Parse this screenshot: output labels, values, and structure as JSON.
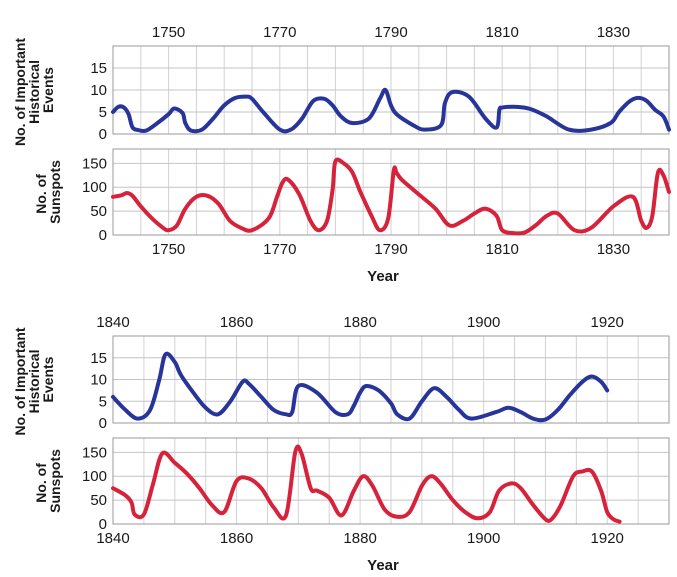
{
  "chart_data": [
    {
      "type": "line",
      "ylabel": [
        "No. of Important",
        "Historical",
        "Events"
      ],
      "xlim": [
        1740,
        1840
      ],
      "ylim": [
        0,
        20
      ],
      "yticks": [
        0,
        5,
        10,
        15
      ],
      "xticks": [
        "1750",
        "1770",
        "1790",
        "1810",
        "1830"
      ],
      "xtick_position": "top",
      "grid": true,
      "series": [
        {
          "color": "#27359a",
          "x": [
            1740.0,
            1741.0,
            1742.0,
            1742.8,
            1743.5,
            1744.5,
            1746.0,
            1748.0,
            1750.0,
            1751.0,
            1752.5,
            1753.0,
            1754.0,
            1756.0,
            1758.0,
            1760.0,
            1762.0,
            1764.0,
            1765.0,
            1767.0,
            1770.0,
            1772.0,
            1774.0,
            1776.0,
            1778.0,
            1779.5,
            1781.0,
            1783.0,
            1786.0,
            1788.0,
            1789.0,
            1790.0,
            1791.0,
            1794.0,
            1796.0,
            1799.0,
            1799.7,
            1801.0,
            1804.0,
            1807.0,
            1809.0,
            1809.5,
            1810.0,
            1812.0,
            1814.0,
            1815.5,
            1818.0,
            1822.0,
            1826.0,
            1829.5,
            1831.0,
            1833.0,
            1834.5,
            1836.0,
            1837.5,
            1839.0,
            1840.0
          ],
          "y": [
            5.0,
            6.2,
            6.0,
            4.5,
            1.5,
            0.9,
            0.8,
            2.5,
            4.5,
            5.8,
            4.8,
            2.5,
            0.8,
            1.0,
            3.5,
            6.5,
            8.2,
            8.5,
            8.0,
            5.0,
            1.0,
            1.0,
            3.5,
            7.5,
            8.0,
            6.5,
            4.0,
            2.5,
            3.5,
            8.0,
            10.0,
            6.5,
            4.5,
            2.0,
            1.0,
            2.0,
            7.0,
            9.5,
            8.5,
            3.5,
            1.5,
            5.5,
            6.0,
            6.2,
            6.0,
            5.5,
            4.0,
            1.0,
            1.0,
            2.5,
            5.0,
            7.5,
            8.2,
            7.5,
            5.5,
            4.0,
            1.0
          ]
        }
      ]
    },
    {
      "type": "line",
      "ylabel": [
        "No. of",
        "Sunspots"
      ],
      "xlabel": "Year",
      "xlim": [
        1740,
        1840
      ],
      "ylim": [
        0,
        180
      ],
      "yticks": [
        0,
        50,
        100,
        150
      ],
      "xticks": [
        "1750",
        "1770",
        "1790",
        "1810",
        "1830"
      ],
      "xtick_position": "bottom",
      "grid": true,
      "series": [
        {
          "color": "#d6223a",
          "x": [
            1740.0,
            1741.5,
            1742.5,
            1743.5,
            1745.0,
            1747.0,
            1749.0,
            1750.0,
            1751.5,
            1753.0,
            1755.0,
            1757.0,
            1759.0,
            1761.0,
            1763.0,
            1765.0,
            1768.0,
            1769.5,
            1770.5,
            1771.5,
            1773.5,
            1775.5,
            1777.0,
            1778.5,
            1779.5,
            1780.0,
            1781.5,
            1783.0,
            1784.5,
            1786.5,
            1788.0,
            1789.5,
            1790.5,
            1791.0,
            1792.0,
            1795.0,
            1798.0,
            1800.5,
            1803.0,
            1805.0,
            1807.0,
            1809.0,
            1810.0,
            1812.0,
            1814.0,
            1816.0,
            1818.0,
            1820.0,
            1823.0,
            1826.0,
            1830.0,
            1833.5,
            1835.0,
            1836.0,
            1837.0,
            1838.0,
            1839.0,
            1840.0
          ],
          "y": [
            80,
            83,
            88,
            82,
            60,
            35,
            15,
            10,
            20,
            55,
            80,
            82,
            65,
            30,
            15,
            10,
            35,
            80,
            110,
            116,
            85,
            30,
            10,
            30,
            95,
            154,
            150,
            132,
            90,
            40,
            10,
            35,
            135,
            130,
            115,
            85,
            55,
            20,
            30,
            45,
            55,
            40,
            10,
            4,
            5,
            20,
            40,
            45,
            10,
            15,
            60,
            80,
            30,
            15,
            40,
            130,
            125,
            90
          ]
        }
      ]
    },
    {
      "type": "line",
      "ylabel": [
        "No. of Important",
        "Historical",
        "Events"
      ],
      "xlim": [
        1840,
        1930
      ],
      "ylim": [
        0,
        20
      ],
      "yticks": [
        0,
        5,
        10,
        15
      ],
      "xticks": [
        "1840",
        "1860",
        "1880",
        "1900",
        "1920"
      ],
      "xtick_position": "top",
      "grid": true,
      "series": [
        {
          "color": "#27359a",
          "x": [
            1840.0,
            1842.0,
            1844.0,
            1846.0,
            1847.5,
            1848.5,
            1850.0,
            1851.0,
            1853.0,
            1855.0,
            1857.0,
            1859.0,
            1861.0,
            1862.0,
            1864.0,
            1866.0,
            1868.0,
            1869.0,
            1870.0,
            1873.0,
            1876.0,
            1878.0,
            1879.0,
            1880.0,
            1881.0,
            1883.0,
            1885.0,
            1886.0,
            1888.0,
            1890.0,
            1892.0,
            1894.0,
            1896.0,
            1898.0,
            1902.0,
            1904.0,
            1906.0,
            1908.0,
            1910.0,
            1912.0,
            1914.0,
            1916.0,
            1917.5,
            1919.0,
            1920.0
          ],
          "y": [
            6.0,
            3.0,
            1.0,
            3.0,
            10.0,
            15.8,
            14.0,
            11.0,
            7.0,
            3.5,
            2.0,
            5.0,
            9.5,
            9.0,
            6.0,
            3.0,
            2.0,
            2.5,
            8.5,
            7.0,
            2.5,
            2.0,
            4.0,
            7.0,
            8.5,
            7.5,
            4.5,
            2.0,
            1.0,
            5.0,
            8.0,
            6.0,
            3.0,
            1.0,
            2.5,
            3.5,
            2.5,
            1.0,
            0.8,
            3.0,
            6.5,
            9.5,
            10.7,
            9.5,
            7.5
          ]
        }
      ]
    },
    {
      "type": "line",
      "ylabel": [
        "No. of",
        "Sunspots"
      ],
      "xlabel": "Year",
      "xlim": [
        1840,
        1930
      ],
      "ylim": [
        0,
        180
      ],
      "yticks": [
        0,
        50,
        100,
        150
      ],
      "xticks": [
        "1840",
        "1860",
        "1880",
        "1900",
        "1920"
      ],
      "xtick_position": "bottom",
      "grid": true,
      "series": [
        {
          "color": "#d6223a",
          "x": [
            1840.0,
            1842.0,
            1843.0,
            1843.5,
            1845.0,
            1846.5,
            1848.0,
            1850.0,
            1852.0,
            1854.0,
            1856.0,
            1858.0,
            1860.0,
            1862.0,
            1864.0,
            1866.0,
            1868.0,
            1869.5,
            1870.5,
            1872.0,
            1873.0,
            1875.0,
            1877.0,
            1879.0,
            1880.5,
            1882.0,
            1884.0,
            1886.0,
            1888.0,
            1890.0,
            1891.5,
            1893.0,
            1895.0,
            1897.0,
            1899.0,
            1901.0,
            1902.5,
            1904.5,
            1906.0,
            1908.0,
            1910.0,
            1911.0,
            1912.5,
            1914.5,
            1916.0,
            1917.5,
            1919.0,
            1920.0,
            1921.0,
            1922.0
          ],
          "y": [
            75,
            60,
            45,
            20,
            20,
            85,
            148,
            128,
            105,
            75,
            40,
            25,
            90,
            95,
            75,
            35,
            18,
            150,
            148,
            75,
            70,
            55,
            18,
            70,
            100,
            80,
            30,
            15,
            25,
            80,
            100,
            85,
            50,
            25,
            12,
            25,
            70,
            85,
            75,
            40,
            10,
            10,
            40,
            100,
            110,
            110,
            70,
            25,
            10,
            5
          ]
        }
      ]
    }
  ]
}
